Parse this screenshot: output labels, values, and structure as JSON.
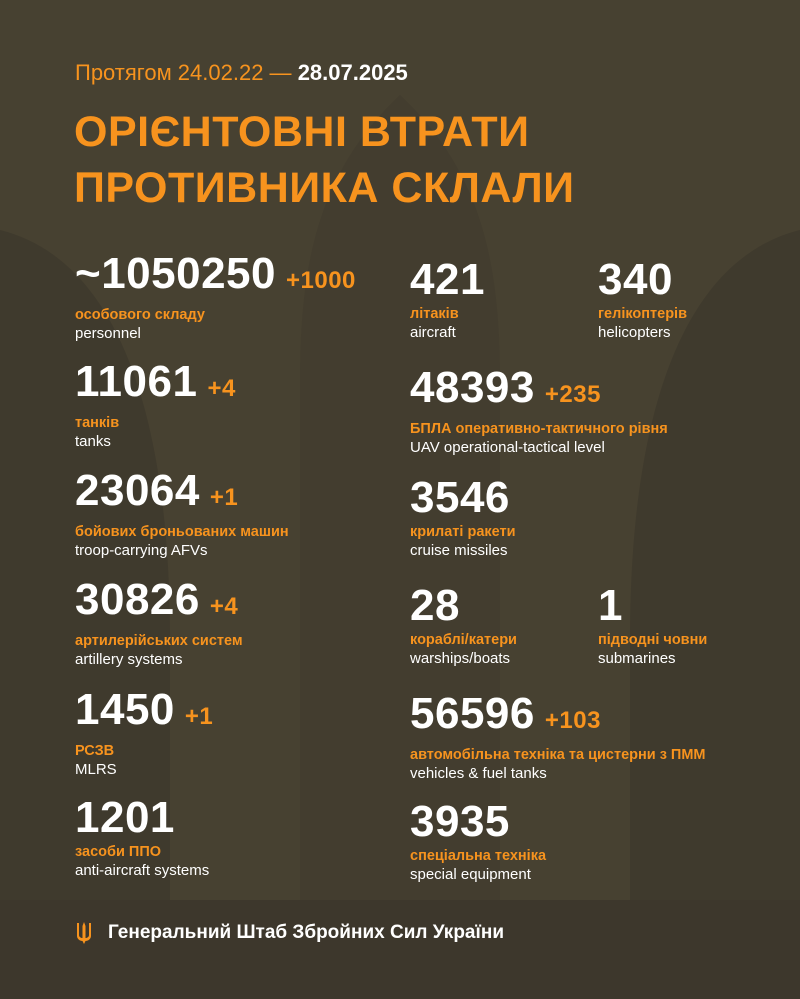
{
  "header": {
    "period_prefix": "Протягом 24.02.22 —",
    "period_end": "28.07.2025",
    "title_line1": "ОРІЄНТОВНІ ВТРАТИ",
    "title_line2": "ПРОТИВНИКА СКЛАЛИ"
  },
  "colors": {
    "accent": "#f7931e",
    "background": "#474131",
    "text": "#ffffff"
  },
  "left": [
    {
      "value": "~1050250",
      "delta": "+1000",
      "ua": "особового складу",
      "en": "personnel"
    },
    {
      "value": "11061",
      "delta": "+4",
      "ua": "танків",
      "en": "tanks"
    },
    {
      "value": "23064",
      "delta": "+1",
      "ua": "бойових броньованих машин",
      "en": "troop-carrying AFVs"
    },
    {
      "value": "30826",
      "delta": "+4",
      "ua": "артилерійських систем",
      "en": "artillery systems"
    },
    {
      "value": "1450",
      "delta": "+1",
      "ua": "РСЗВ",
      "en": "MLRS"
    },
    {
      "value": "1201",
      "delta": "",
      "ua": "засоби ППО",
      "en": "anti-aircraft systems"
    }
  ],
  "right": [
    {
      "value": "421",
      "delta": "",
      "ua": "літаків",
      "en": "aircraft"
    },
    {
      "value": "340",
      "delta": "",
      "ua": "гелікоптерів",
      "en": "helicopters"
    },
    {
      "value": "48393",
      "delta": "+235",
      "ua": "БПЛА оперативно-тактичного рівня",
      "en": "UAV operational-tactical level"
    },
    {
      "value": "3546",
      "delta": "",
      "ua": "крилаті ракети",
      "en": "cruise missiles"
    },
    {
      "value": "28",
      "delta": "",
      "ua": "кораблі/катери",
      "en": "warships/boats"
    },
    {
      "value": "1",
      "delta": "",
      "ua": "підводні човни",
      "en": "submarines"
    },
    {
      "value": "56596",
      "delta": "+103",
      "ua": "автомобільна техніка та цистерни з ПММ",
      "en": "vehicles & fuel tanks"
    },
    {
      "value": "3935",
      "delta": "",
      "ua": "спеціальна техніка",
      "en": "special equipment"
    }
  ],
  "footer": {
    "org": "Генеральний Штаб Збройних Сил України",
    "icon": "trident-icon"
  }
}
